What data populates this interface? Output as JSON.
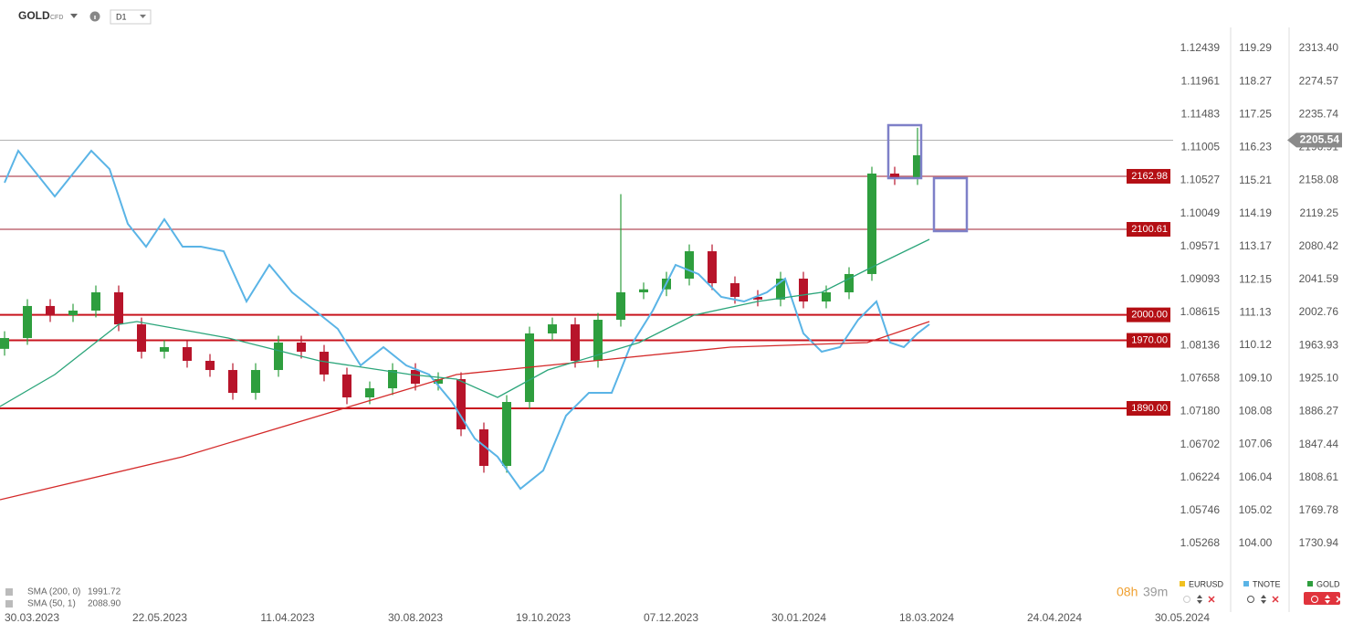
{
  "toolbar": {
    "symbol": "GOLD",
    "symbol_type": "CFD",
    "timeframe": "D1"
  },
  "chart_data": {
    "type": "candlestick",
    "xlim": [
      0,
      260
    ],
    "xticks": [
      {
        "value": 7,
        "label": "30.03.2023"
      },
      {
        "value": 35,
        "label": "22.05.2023"
      },
      {
        "value": 63,
        "label": "11.04.2023"
      },
      {
        "value": 91,
        "label": "30.08.2023"
      },
      {
        "value": 119,
        "label": "19.10.2023"
      },
      {
        "value": 147,
        "label": "07.12.2023"
      },
      {
        "value": 175,
        "label": "30.01.2024"
      },
      {
        "value": 203,
        "label": "18.03.2024"
      },
      {
        "value": 231,
        "label": "24.04.2024"
      },
      {
        "value": 259,
        "label": "30.05.2024"
      }
    ],
    "ylim": [
      1661.09,
      2370.36
    ],
    "yticks": [
      {
        "value": 2313.4,
        "label": "2313.40"
      },
      2274.57,
      2235.74,
      2196.91,
      2158.08,
      2119.25,
      2080.42,
      2041.59,
      2002.76,
      1963.93,
      {
        "value": 1925.1,
        "label": "1925.10"
      },
      1886.27,
      1847.44,
      1808.61,
      1769.78,
      1730.94
    ],
    "y2lim": [
      102.166,
      120.785
    ],
    "y2ticks": [
      119.29,
      118.27,
      117.25,
      116.23,
      115.21,
      114.19,
      113.17,
      112.15,
      111.13,
      110.12,
      {
        "value": 109.1,
        "label": "109.10"
      },
      108.08,
      107.06,
      106.04,
      105.02,
      {
        "value": 104,
        "label": "104.00"
      }
    ],
    "y3lim": [
      1.04408,
      1.131402
    ],
    "y3ticks": [
      1.12439,
      1.11961,
      1.11483,
      1.11005,
      1.10527,
      1.10049,
      1.09571,
      1.09093,
      1.08615,
      1.08136,
      1.07658,
      {
        "value": 1.0718,
        "label": "1.07180"
      },
      1.06702,
      1.06224,
      1.05746,
      1.05268
    ],
    "series": [
      {
        "name": "GOLD",
        "type": "candlestick",
        "up_color": "#2e9e3e",
        "down_color": "#b7142a",
        "x": [
          1,
          6,
          11,
          16,
          21,
          26,
          31,
          36,
          41,
          46,
          51,
          56,
          61,
          66,
          71,
          76,
          81,
          86,
          91,
          96,
          101,
          106,
          111,
          116,
          121,
          126,
          131,
          136,
          141,
          146,
          151,
          156,
          161,
          166,
          171,
          176,
          181,
          186,
          191,
          196,
          201
        ],
        "open": [
          1960.0,
          1972.7,
          2010.4,
          1999.6,
          2005.0,
          2026.5,
          1988.8,
          1956.6,
          1962.0,
          1945.9,
          1935.1,
          1908.2,
          1935.1,
          1967.4,
          1956.6,
          1929.8,
          1902.9,
          1913.6,
          1935.1,
          1919.0,
          1924.4,
          1865.3,
          1822.3,
          1897.5,
          1978.1,
          1988.8,
          1945.9,
          1994.2,
          2026.5,
          2030.0,
          2042.6,
          2074.8,
          2037.2,
          2021.1,
          2018.0,
          2042.6,
          2015.7,
          2026.5,
          2048.0,
          2166.2,
          2160.8
        ],
        "high": [
          1980.7,
          2018.4,
          2018.4,
          2013.0,
          2034.5,
          2034.5,
          1996.8,
          1970.0,
          1970.0,
          1953.9,
          1943.1,
          1943.1,
          1975.4,
          1975.4,
          1964.6,
          1937.8,
          1921.6,
          1943.1,
          1943.1,
          1932.4,
          1932.4,
          1873.3,
          1905.5,
          1986.1,
          1996.8,
          1996.8,
          2002.2,
          2142.0,
          2038.0,
          2050.6,
          2082.8,
          2082.8,
          2045.2,
          2029.1,
          2050.6,
          2050.6,
          2034.5,
          2056.0,
          2174.2,
          2174.2,
          2220.0
        ],
        "low": [
          1952.0,
          1964.7,
          1991.6,
          1991.6,
          1997.0,
          1980.8,
          1948.6,
          1948.6,
          1937.9,
          1927.1,
          1900.2,
          1900.2,
          1927.1,
          1948.6,
          1921.8,
          1894.9,
          1894.9,
          1905.6,
          1911.0,
          1911.0,
          1857.3,
          1814.3,
          1814.3,
          1889.5,
          1970.1,
          1937.9,
          1937.9,
          1986.2,
          2018.5,
          2022.0,
          2034.6,
          2029.2,
          2013.1,
          2010.0,
          2010.0,
          2007.7,
          2007.7,
          2018.5,
          2040.0,
          2152.8,
          2152.8
        ],
        "close": [
          1972.7,
          2010.4,
          1999.6,
          2005.0,
          2026.5,
          1988.8,
          1956.6,
          1962.0,
          1945.9,
          1935.1,
          1908.2,
          1935.1,
          1967.4,
          1956.6,
          1929.8,
          1902.9,
          1913.6,
          1935.1,
          1919.0,
          1924.4,
          1865.3,
          1822.3,
          1897.5,
          1978.1,
          1988.8,
          1945.9,
          1994.2,
          2026.5,
          2030.0,
          2042.6,
          2074.8,
          2037.2,
          2021.1,
          2018.0,
          2042.6,
          2015.7,
          2026.5,
          2048.0,
          2166.2,
          2160.8,
          2187.7
        ]
      },
      {
        "name": "TNOTE",
        "type": "line",
        "axis": "y2",
        "color": "#5ab4e6",
        "x": [
          1,
          4,
          8,
          12,
          16,
          20,
          24,
          28,
          32,
          36,
          40,
          44,
          49,
          54,
          59,
          64,
          69,
          74,
          79,
          84,
          89,
          94,
          99,
          104,
          109,
          114,
          119,
          124,
          129,
          134,
          138,
          143,
          148,
          153,
          158,
          163,
          168,
          172,
          176,
          180,
          184,
          188,
          192,
          195,
          198,
          201,
          203.6
        ],
        "values": [
          115.143,
          116.13,
          115.425,
          114.72,
          115.425,
          116.13,
          115.566,
          113.874,
          113.168,
          114.015,
          113.168,
          113.168,
          113.027,
          111.476,
          112.604,
          111.758,
          111.194,
          110.629,
          109.501,
          110.065,
          109.501,
          109.219,
          108.373,
          107.244,
          106.68,
          105.693,
          106.257,
          107.95,
          108.655,
          108.655,
          110.065,
          111.194,
          112.604,
          112.322,
          111.617,
          111.476,
          111.758,
          112.181,
          110.488,
          109.924,
          110.065,
          110.911,
          111.476,
          110.206,
          110.065,
          110.488,
          110.771
        ]
      },
      {
        "name": "SMA (200, 0)",
        "type": "line",
        "color": "#d42a2a",
        "legend_value": 1991.72,
        "x": [
          0,
          40,
          80,
          100,
          130,
          160,
          190,
          203.6
        ],
        "values": [
          1782.5,
          1833.0,
          1897.5,
          1929.8,
          1945.9,
          1962.0,
          1967.4,
          1992.1
        ]
      },
      {
        "name": "SMA (50, 1)",
        "type": "line",
        "color": "#2ba57a",
        "legend_value": {
          "value": 2088.9,
          "label": "2088.90"
        },
        "x": [
          0,
          12,
          26,
          30,
          50,
          70,
          90,
          100,
          109,
          120,
          140,
          152,
          166,
          180,
          190,
          203.6
        ],
        "values": [
          1892.1,
          1929.8,
          1988.8,
          1992.1,
          1972.7,
          1945.9,
          1929.8,
          1924.4,
          1902.9,
          1935.1,
          1967.4,
          1999.6,
          2015.7,
          2026.5,
          2053.3,
          2088.8
        ]
      }
    ],
    "levels": [
      2162.98,
      2100.61,
      {
        "value": 2000,
        "label": "2000.00"
      },
      {
        "value": 1970,
        "label": "1970.00"
      },
      {
        "value": 1890,
        "label": "1890.00"
      }
    ],
    "last_price": 2205.54
  },
  "timer": {
    "hours": "08h",
    "minutes": "39m"
  },
  "panel_tabs": [
    "EURUSD",
    "TNOTE",
    "GOLD"
  ]
}
